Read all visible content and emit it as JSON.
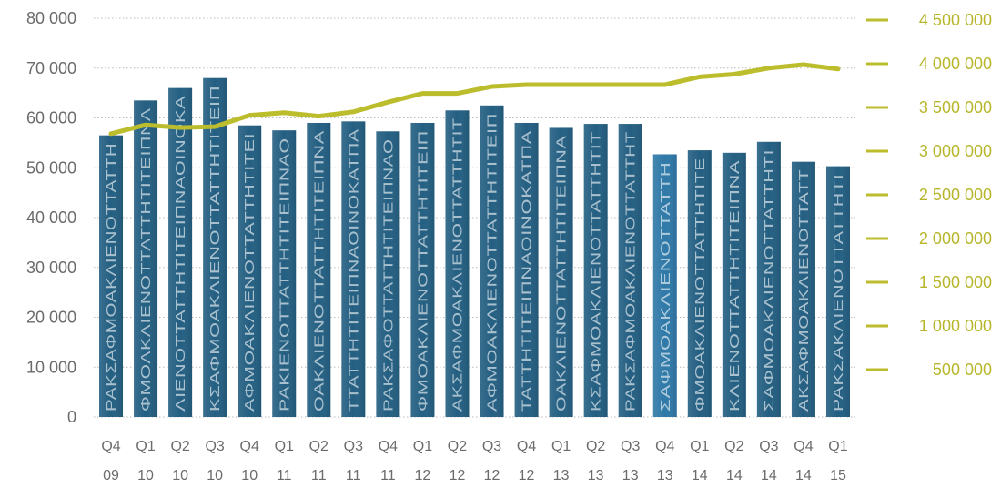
{
  "chart_data": {
    "type": "bar",
    "title": "",
    "xlabel": "",
    "ylabel": "",
    "ylim": [
      0,
      80000
    ],
    "y2lim": [
      0,
      5000000
    ],
    "categories": [
      [
        "Q4",
        "09"
      ],
      [
        "Q1",
        "10"
      ],
      [
        "Q2",
        "10"
      ],
      [
        "Q3",
        "10"
      ],
      [
        "Q4",
        "10"
      ],
      [
        "Q1",
        "11"
      ],
      [
        "Q2",
        "11"
      ],
      [
        "Q3",
        "11"
      ],
      [
        "Q4",
        "11"
      ],
      [
        "Q1",
        "12"
      ],
      [
        "Q2",
        "12"
      ],
      [
        "Q3",
        "12"
      ],
      [
        "Q4",
        "12"
      ],
      [
        "Q1",
        "13"
      ],
      [
        "Q2",
        "13"
      ],
      [
        "Q3",
        "13"
      ],
      [
        "Q4",
        "13"
      ],
      [
        "Q1",
        "14"
      ],
      [
        "Q2",
        "14"
      ],
      [
        "Q3",
        "14"
      ],
      [
        "Q4",
        "14"
      ],
      [
        "Q1",
        "15"
      ]
    ],
    "left_ticks": [
      "0",
      "10 000",
      "20 000",
      "30 000",
      "40 000",
      "50 000",
      "60 000",
      "70 000",
      "80 000"
    ],
    "left_tick_values": [
      0,
      10000,
      20000,
      30000,
      40000,
      50000,
      60000,
      70000,
      80000
    ],
    "right_ticks": [
      "500 000",
      "1 000 000",
      "1 500 000",
      "2 000 000",
      "2 500 000",
      "3 000 000",
      "3 500 000",
      "4 000 000",
      "4 500 000"
    ],
    "right_tick_values": [
      500000,
      1000000,
      1500000,
      2000000,
      2500000,
      3000000,
      3500000,
      4000000,
      4500000
    ],
    "series": [
      {
        "type": "bar",
        "axis": "left",
        "color": "#245f82",
        "highlight_color": "#2f79a8",
        "values": [
          56500,
          63500,
          66000,
          68000,
          58500,
          57500,
          59000,
          59300,
          57300,
          59000,
          61500,
          62500,
          59000,
          58000,
          58800,
          58800,
          52700,
          53500,
          53000,
          55200,
          51200,
          50300
        ],
        "bar_texts": [
          "ΡΑΚΣΑΦΜΟΑΚΛΙΕΝΟΤΤΑΤΤΗ",
          "ΦΜΟΑΚΛΙΕΝΟΤΤΑΤΤΗΤΙΤΕΙΠΝΑ",
          "ΛΙΕΝΟΤΤΑΤΤΗΤΙΤΕΙΠΝΑΟΙΝΟΚΑ",
          "ΚΣΑΦΜΟΑΚΛΙΕΝΟΤΤΑΤΤΗΤΙΤΕΙΠ",
          "ΑΦΜΟΑΚΛΙΕΝΟΤΤΑΤΤΗΤΙΤΕΙ",
          "ΡΑΚΙΕΝΟΤΤΑΤΤΗΤΙΤΕΙΠΝΑΟ",
          "ΟΑΚΛΙΕΝΟΤΤΑΤΤΗΤΙΤΕΙΠΝΑ",
          "ΤΤΑΤΤΗΤΙΤΕΙΠΝΑΟΙΝΟΚΑΤΠΑ",
          "ΡΑΚΣΑΦΟΤΤΑΤΤΗΤΙΤΕΙΠΝΑΟ",
          "ΦΜΟΑΚΛΙΕΝΟΤΤΑΤΤΗΤΙΤΕΙΠ",
          "ΑΚΣΑΦΜΟΑΚΛΙΕΝΟΤΤΑΤΤΗΤΙΤ",
          "ΑΦΜΟΑΚΛΙΕΝΟΤΤΑΤΤΗΤΙΤΕΙΠ",
          "ΤΑΤΤΗΤΙΤΕΙΠΝΑΟΙΝΟΚΑΤΠΑ",
          "ΟΑΚΛΙΕΝΟΤΤΑΤΤΗΤΙΤΕΙΠΝΑ",
          "ΚΣΑΦΜΟΑΚΛΙΕΝΟΤΤΑΤΤΗΤΙΤ",
          "ΡΑΚΣΑΦΜΟΑΚΛΙΕΝΟΤΤΑΤΤΗΤ",
          "ΣΑΦΜΟΑΚΛΙΕΝΟΤΤΑΤΤΗ",
          "ΦΜΟΑΚΛΙΕΝΟΤΤΑΤΤΗΤΙΤΕ",
          "ΚΛΙΕΝΟΤΤΑΤΤΗΤΙΤΕΙΠΝΑ",
          "ΣΑΦΜΟΑΚΛΙΕΝΟΤΤΑΤΤΗΤΙ",
          "ΑΚΣΑΦΜΟΑΚΛΙΕΝΟΤΤΑΤΤ",
          "ΡΑΚΣΑΚΛΙΕΝΟΤΤΑΤΤΗΤΙ"
        ]
      },
      {
        "type": "line",
        "axis": "right",
        "color": "#bcbd2c",
        "values": [
          3200000,
          3300000,
          3270000,
          3280000,
          3410000,
          3440000,
          3400000,
          3450000,
          3560000,
          3660000,
          3660000,
          3740000,
          3760000,
          3760000,
          3760000,
          3760000,
          3760000,
          3850000,
          3880000,
          3950000,
          3990000,
          3940000
        ]
      }
    ],
    "grid": true,
    "legend": "none"
  }
}
